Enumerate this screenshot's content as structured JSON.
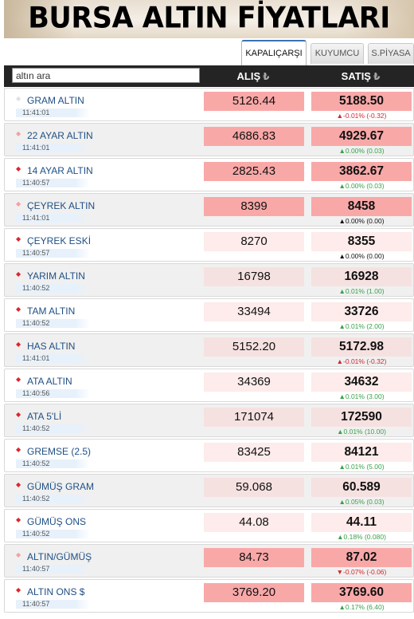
{
  "title": "BURSA ALTIN FİYATLARI",
  "tabs": [
    {
      "label": "KAPALIÇARŞI",
      "active": true
    },
    {
      "label": "KUYUMCU",
      "active": false
    },
    {
      "label": "S.PİYASA",
      "active": false
    }
  ],
  "search": {
    "placeholder": "altın ara"
  },
  "columns": {
    "alis": "ALIŞ",
    "satis": "SATIŞ",
    "currency_symbol": "₺"
  },
  "colors": {
    "header_bg": "#242424",
    "name_blue": "#1f4f85",
    "down_red": "#d0262d",
    "up_green": "#3aa14a",
    "highlight_pink": "#f9a8a8"
  },
  "rows": [
    {
      "name": "GRAM ALTIN",
      "time": "11:41:01",
      "alis": "5126.44",
      "satis": "5188.50",
      "change": "▲-0.01% (-0.32)",
      "dir": "none",
      "change_dir": "down",
      "hl": "hi"
    },
    {
      "name": "22 AYAR ALTIN",
      "time": "11:41:01",
      "alis": "4686.83",
      "satis": "4929.67",
      "change": "▲0.00% (0.03)",
      "dir": "flat",
      "change_dir": "up",
      "hl": "hi"
    },
    {
      "name": "14 AYAR ALTIN",
      "time": "11:40:57",
      "alis": "2825.43",
      "satis": "3862.67",
      "change": "▲0.00% (0.03)",
      "dir": "down",
      "change_dir": "up",
      "hl": "hi"
    },
    {
      "name": "ÇEYREK ALTIN",
      "time": "11:41:01",
      "alis": "8399",
      "satis": "8458",
      "change": "▲0.00% (0.00)",
      "dir": "flat",
      "change_dir": "neutral",
      "hl": "hi"
    },
    {
      "name": "ÇEYREK ESKİ",
      "time": "11:40:57",
      "alis": "8270",
      "satis": "8355",
      "change": "▲0.00% (0.00)",
      "dir": "down",
      "change_dir": "neutral",
      "hl": "lo"
    },
    {
      "name": "YARIM ALTIN",
      "time": "11:40:52",
      "alis": "16798",
      "satis": "16928",
      "change": "▲0.01% (1.00)",
      "dir": "down",
      "change_dir": "up",
      "hl": "lo2"
    },
    {
      "name": "TAM ALTIN",
      "time": "11:40:52",
      "alis": "33494",
      "satis": "33726",
      "change": "▲0.01% (2.00)",
      "dir": "down",
      "change_dir": "up",
      "hl": "lo"
    },
    {
      "name": "HAS ALTIN",
      "time": "11:41:01",
      "alis": "5152.20",
      "satis": "5172.98",
      "change": "▲-0.01% (-0.32)",
      "dir": "down",
      "change_dir": "down",
      "hl": "lo2"
    },
    {
      "name": "ATA ALTIN",
      "time": "11:40:56",
      "alis": "34369",
      "satis": "34632",
      "change": "▲0.01% (3.00)",
      "dir": "down",
      "change_dir": "up",
      "hl": "lo"
    },
    {
      "name": "ATA 5'Lİ",
      "time": "11:40:52",
      "alis": "171074",
      "satis": "172590",
      "change": "▲0.01% (10.00)",
      "dir": "down",
      "change_dir": "up",
      "hl": "lo2"
    },
    {
      "name": "GREMSE (2.5)",
      "time": "11:40:52",
      "alis": "83425",
      "satis": "84121",
      "change": "▲0.01% (5.00)",
      "dir": "down",
      "change_dir": "up",
      "hl": "lo"
    },
    {
      "name": "GÜMÜŞ GRAM",
      "time": "11:40:52",
      "alis": "59.068",
      "satis": "60.589",
      "change": "▲0.05% (0.03)",
      "dir": "down",
      "change_dir": "up",
      "hl": "lo2"
    },
    {
      "name": "GÜMÜŞ ONS",
      "time": "11:40:52",
      "alis": "44.08",
      "satis": "44.11",
      "change": "▲0.18% (0.080)",
      "dir": "down",
      "change_dir": "up",
      "hl": "lo"
    },
    {
      "name": "ALTIN/GÜMÜŞ",
      "time": "11:40:57",
      "alis": "84.73",
      "satis": "87.02",
      "change": "▼-0.07% (-0.06)",
      "dir": "flat",
      "change_dir": "down",
      "hl": "hi"
    },
    {
      "name": "ALTIN ONS $",
      "time": "11:40:57",
      "alis": "3769.20",
      "satis": "3769.60",
      "change": "▲0.17% (6.40)",
      "dir": "down",
      "change_dir": "up",
      "hl": "hi"
    }
  ]
}
